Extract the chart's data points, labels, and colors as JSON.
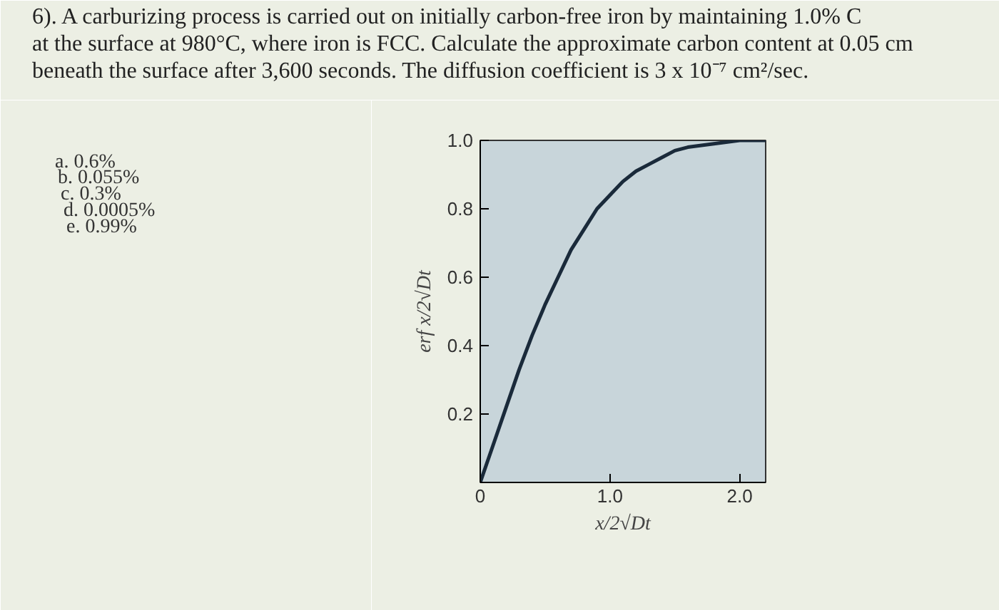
{
  "chart_data": {
    "type": "line",
    "title": "6).     A carburizing process is carried out on initially carbon-free iron by maintaining 1.0% C at the surface at 980°C, where iron is FCC.  Calculate the approximate carbon content at 0.05 cm beneath the surface after 3,600 seconds. The diffusion coefficient is 3 x 10⁻⁷ cm²/sec.",
    "annotations": [
      "a. 0.6%",
      "b. 0.055%",
      "c. 0.3%",
      "d. 0.0005%",
      "e. 0.99%"
    ],
    "xlabel": "x/2√Dt",
    "ylabel": "erf x/2√Dt",
    "x": [
      0,
      0.1,
      0.2,
      0.3,
      0.4,
      0.5,
      0.6,
      0.7,
      0.8,
      0.9,
      1.0,
      1.1,
      1.2,
      1.3,
      1.4,
      1.5,
      1.6,
      1.8,
      2.0,
      2.2
    ],
    "series": [
      {
        "color": "#1a2a3a",
        "values": [
          0,
          0.11,
          0.22,
          0.33,
          0.43,
          0.52,
          0.6,
          0.68,
          0.74,
          0.8,
          0.84,
          0.88,
          0.91,
          0.93,
          0.95,
          0.97,
          0.98,
          0.99,
          1.0,
          1.0
        ]
      }
    ],
    "xlim": [
      0,
      2.2
    ],
    "ylim": [
      0,
      1.0
    ],
    "xticks": [
      {
        "value": 0,
        "label": "0"
      },
      {
        "value": 1.0,
        "label": "1.0"
      },
      {
        "value": 2.0,
        "label": "2.0"
      }
    ],
    "yticks": [
      0.2,
      0.4,
      0.6,
      0.8,
      {
        "value": 1.0,
        "label": "1.0"
      }
    ],
    "grid": false,
    "marker": "none",
    "line_style": "solid"
  }
}
